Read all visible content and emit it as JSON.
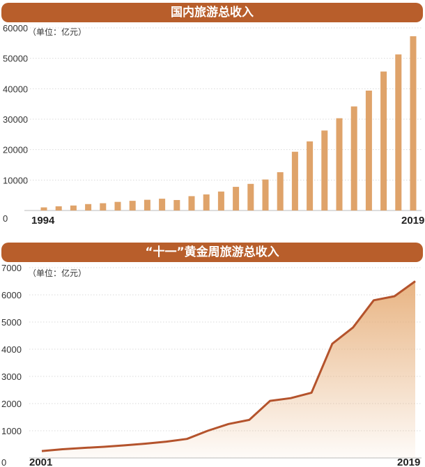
{
  "chart_data": [
    {
      "type": "bar",
      "title": "国内旅游总收入",
      "unit_label": "（单位：亿元）",
      "color": "#dfa36a",
      "y_ticks": [
        "0",
        "10000",
        "20000",
        "30000",
        "40000",
        "50000",
        "60000"
      ],
      "ylim": [
        0,
        60000
      ],
      "x_labels": [
        "1994",
        "2019"
      ],
      "categories": [
        "1994",
        "1995",
        "1996",
        "1997",
        "1998",
        "1999",
        "2000",
        "2001",
        "2002",
        "2003",
        "2004",
        "2005",
        "2006",
        "2007",
        "2008",
        "2009",
        "2010",
        "2011",
        "2012",
        "2013",
        "2014",
        "2015",
        "2016",
        "2017",
        "2018",
        "2019"
      ],
      "values": [
        1024,
        1376,
        1638,
        2113,
        2391,
        2832,
        3176,
        3522,
        3878,
        3442,
        4711,
        5286,
        6230,
        7771,
        8749,
        10184,
        12580,
        19305,
        22706,
        26276,
        30312,
        34195,
        39390,
        45661,
        51278,
        57251
      ]
    },
    {
      "type": "area",
      "title": "“十一”黄金周旅游总收入",
      "unit_label": "（单位：亿元）",
      "line_color": "#b4532c",
      "fill_color": "#e7b07c",
      "y_ticks": [
        "0",
        "1000",
        "2000",
        "3000",
        "4000",
        "5000",
        "6000",
        "7000"
      ],
      "ylim": [
        0,
        7000
      ],
      "x_labels": [
        "2001",
        "2019"
      ],
      "x": [
        2001,
        2002,
        2003,
        2004,
        2005,
        2006,
        2007,
        2008,
        2009,
        2010,
        2011,
        2012,
        2013,
        2014,
        2015,
        2016,
        2017,
        2018,
        2019
      ],
      "values": [
        255,
        320,
        370,
        410,
        463,
        526,
        600,
        700,
        1000,
        1250,
        1400,
        2100,
        2200,
        2400,
        4200,
        4800,
        5800,
        5950,
        6500
      ]
    }
  ]
}
